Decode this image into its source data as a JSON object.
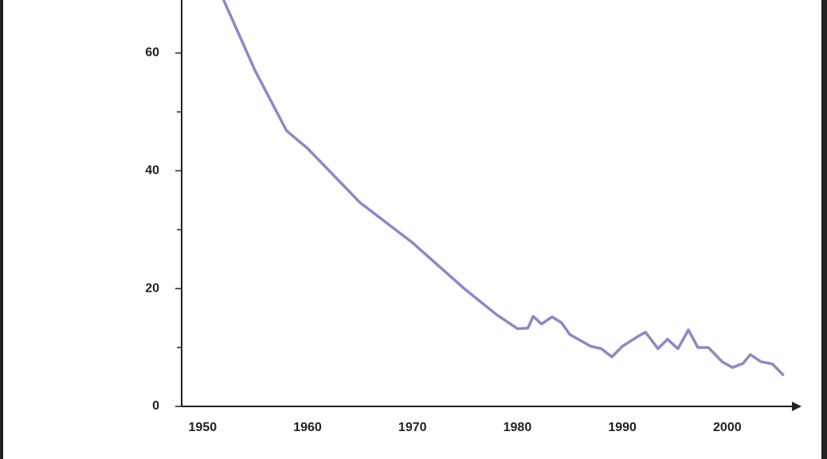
{
  "chart_data": {
    "type": "line",
    "x": [
      1952,
      1955,
      1958,
      1960,
      1965,
      1970,
      1975,
      1978,
      1980,
      1981,
      1981.5,
      1982.3,
      1983.3,
      1984.2,
      1985,
      1987,
      1988,
      1989,
      1990,
      1991.5,
      1992.2,
      1993.4,
      1994.3,
      1995.3,
      1996.3,
      1997.2,
      1998.2,
      1999.5,
      2000.5,
      2001.5,
      2002.2,
      2003.2,
      2004.3,
      2005.3
    ],
    "series": [
      {
        "color": "#8a8ac8",
        "values": [
          69,
          57,
          46.8,
          43.8,
          34.6,
          27.8,
          19.9,
          15.6,
          13.2,
          13.3,
          15.3,
          14,
          15.2,
          14.2,
          12.2,
          10.2,
          9.8,
          8.4,
          10.2,
          11.9,
          12.6,
          9.8,
          11.4,
          9.8,
          13,
          10,
          10,
          7.6,
          6.6,
          7.3,
          8.8,
          7.6,
          7.2,
          5.4
        ]
      }
    ],
    "xlim": [
      1948,
      2007
    ],
    "xticks": [
      1950,
      1960,
      1970,
      1980,
      1990,
      2000
    ],
    "ylim": [
      0,
      69
    ],
    "yticks": [
      0,
      20,
      40,
      60
    ],
    "yminorticks": [
      10,
      30,
      50
    ]
  }
}
